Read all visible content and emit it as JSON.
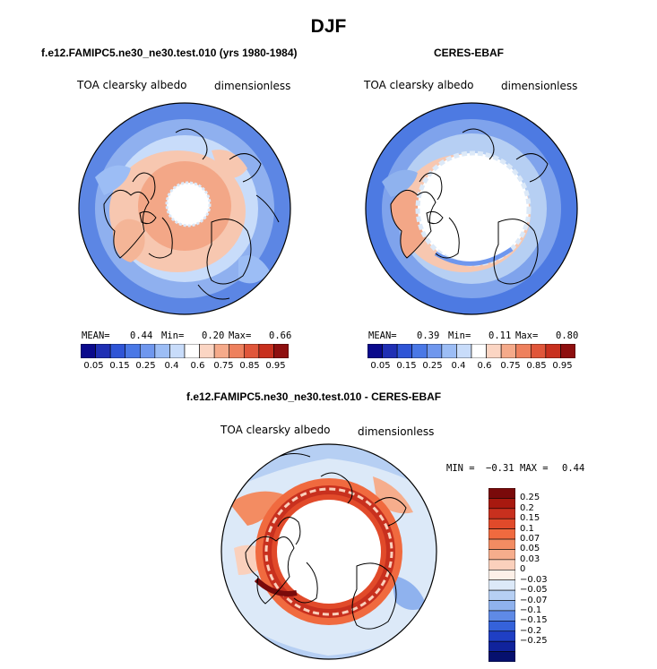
{
  "season": "DJF",
  "panels": [
    {
      "title": "f.e12.FAMIPC5.ne30_ne30.test.010 (yrs 1980-1984)",
      "variable": "TOA clearsky albedo",
      "units": "dimensionless",
      "stats": {
        "mean_label": "MEAN=",
        "mean": "0.44",
        "min_label": "Min=",
        "min": "0.20",
        "max_label": "Max=",
        "max": "0.66"
      }
    },
    {
      "title": "CERES-EBAF",
      "variable": "TOA clearsky albedo",
      "units": "dimensionless",
      "stats": {
        "mean_label": "MEAN=",
        "mean": "0.39",
        "min_label": "Min=",
        "min": "0.11",
        "max_label": "Max=",
        "max": "0.80"
      }
    }
  ],
  "abs_colorbar": {
    "colors": [
      "#0a0a8c",
      "#1f2fb4",
      "#2f55d6",
      "#4a78e6",
      "#6f97ee",
      "#9cbdf5",
      "#c8dcfa",
      "#ffffff",
      "#fbd5c3",
      "#f5aa8a",
      "#ee805d",
      "#e0563a",
      "#c8301e",
      "#8e0f0f"
    ],
    "ticks": [
      "0.05",
      "0.15",
      "0.25",
      "0.4",
      "0.6",
      "0.75",
      "0.85",
      "0.95"
    ]
  },
  "diff_panel": {
    "title": "f.e12.FAMIPC5.ne30_ne30.test.010 - CERES-EBAF",
    "variable": "TOA clearsky albedo",
    "units": "dimensionless",
    "min_label": "MIN =",
    "min": "−0.31",
    "max_label": "MAX =",
    "max": "0.44"
  },
  "diff_colorbar": {
    "colors": [
      "#7a0a0a",
      "#a8190f",
      "#c8301e",
      "#e14a2a",
      "#f06a3f",
      "#f38c62",
      "#f6ad8c",
      "#fad0bc",
      "#fdf0e8",
      "#dce9f8",
      "#b6cff3",
      "#8fb2ee",
      "#5f8ae6",
      "#3562da",
      "#1f3fc4",
      "#10239c",
      "#06106e"
    ],
    "ticks": [
      "0.25",
      "0.2",
      "0.15",
      "0.1",
      "0.07",
      "0.05",
      "0.03",
      "0",
      "−0.03",
      "−0.05",
      "−0.07",
      "−0.1",
      "−0.15",
      "−0.2",
      "−0.25"
    ]
  }
}
